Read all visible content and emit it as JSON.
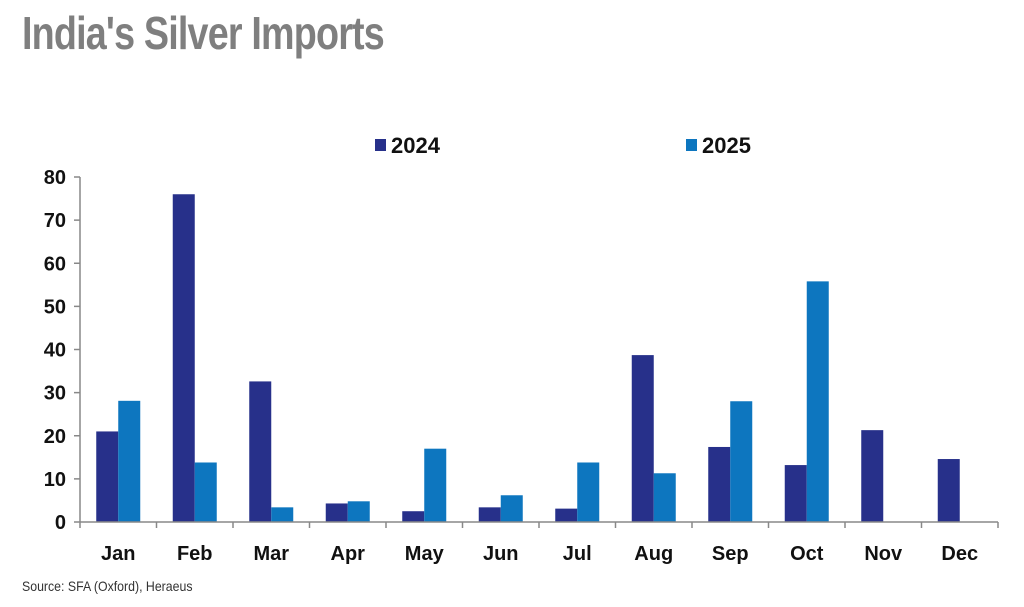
{
  "header": {
    "title": "India's Silver Imports"
  },
  "footer": {
    "source": "Source: SFA (Oxford), Heraeus"
  },
  "colors": {
    "s2024": "#27308a",
    "s2025": "#0d76bf",
    "axis": "#888888"
  },
  "chart_data": {
    "type": "bar",
    "title": "India's Silver Imports",
    "xlabel": "",
    "ylabel": "",
    "ylim": [
      0,
      80
    ],
    "yticks": [
      0,
      10,
      20,
      30,
      40,
      50,
      60,
      70,
      80
    ],
    "categories": [
      "Jan",
      "Feb",
      "Mar",
      "Apr",
      "May",
      "Jun",
      "Jul",
      "Aug",
      "Sep",
      "Oct",
      "Nov",
      "Dec"
    ],
    "legend_position": "top",
    "series": [
      {
        "name": "2024",
        "values": [
          21,
          76,
          32.6,
          4.3,
          2.5,
          3.4,
          3.1,
          38.7,
          17.4,
          13.2,
          21.3,
          14.6
        ]
      },
      {
        "name": "2025",
        "values": [
          28.1,
          13.8,
          3.4,
          4.8,
          17,
          6.2,
          13.8,
          11.3,
          28,
          55.8,
          null,
          null
        ]
      }
    ]
  }
}
